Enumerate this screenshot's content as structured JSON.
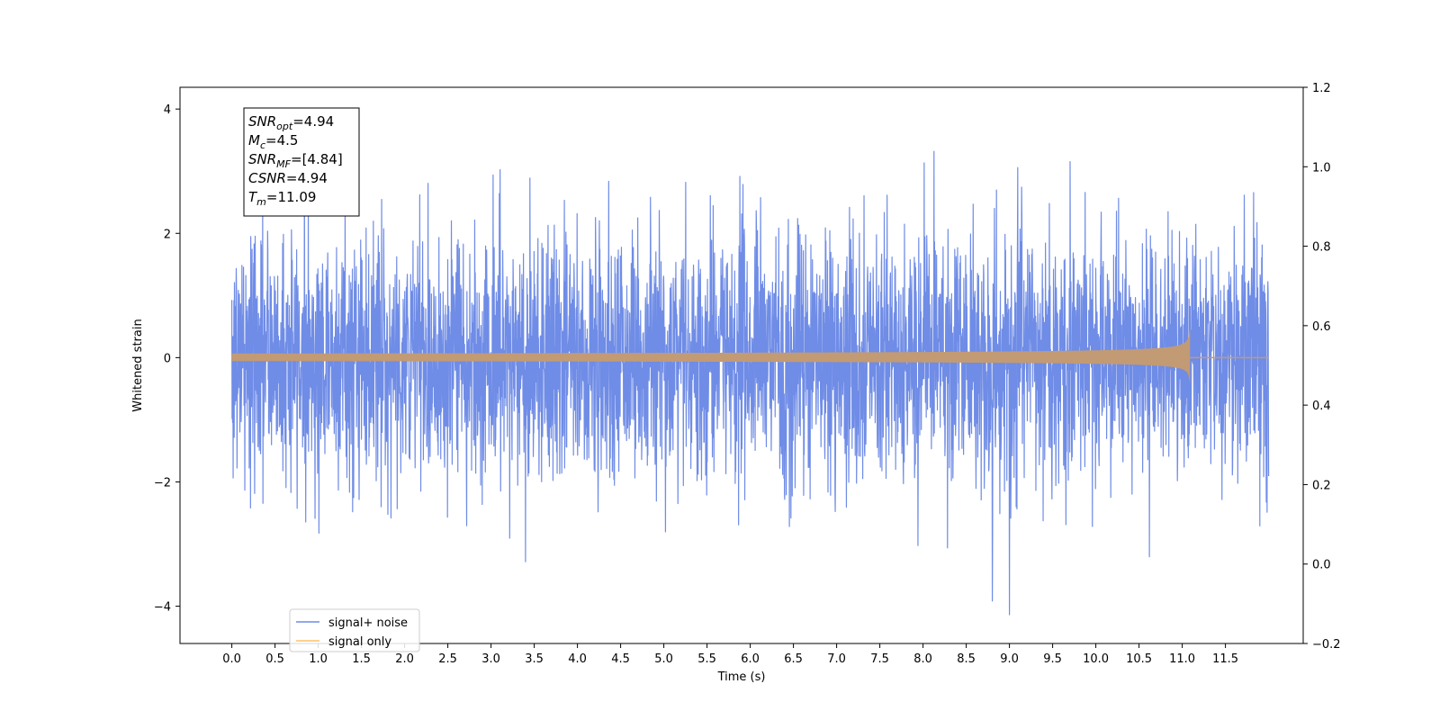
{
  "chart_data": {
    "type": "line",
    "xlabel": "Time (s)",
    "ylabel": "Whitened strain",
    "xlim": [
      -0.6,
      12.4
    ],
    "ylim": [
      -4.6,
      4.35
    ],
    "y2lim": [
      -0.2,
      1.2
    ],
    "x_ticks": [
      "0.0",
      "0.5",
      "1.0",
      "1.5",
      "2.0",
      "2.5",
      "3.0",
      "3.5",
      "4.0",
      "4.5",
      "5.0",
      "5.5",
      "6.0",
      "6.5",
      "7.0",
      "7.5",
      "8.0",
      "8.5",
      "9.0",
      "9.5",
      "10.0",
      "10.5",
      "11.0",
      "11.5"
    ],
    "y_ticks": [
      "4",
      "2",
      "0",
      "−2",
      "−4"
    ],
    "y2_ticks": [
      "1.2",
      "1.0",
      "0.8",
      "0.6",
      "0.4",
      "0.2",
      "0.0",
      "−0.2"
    ],
    "grid": false,
    "legend_position": "lower-left",
    "series": [
      {
        "name": "signal+ noise",
        "color": "#6f8ce6",
        "x_range": [
          0.0,
          12.0
        ],
        "noise_std": 1.0,
        "noise_max": 3.97,
        "noise_min": -4.22
      },
      {
        "name": "signal only",
        "color": "#ffc266",
        "x_range": [
          0.0,
          12.0
        ],
        "chirp_end_time": 11.09,
        "chirp_peak_amplitude": 0.52
      }
    ],
    "annotation": {
      "lines": [
        {
          "base": "SNR",
          "sub": "opt",
          "value": "=4.94"
        },
        {
          "base": "M",
          "sub": "c",
          "value": "=4.5"
        },
        {
          "base": "SNR",
          "sub": "MF",
          "value": "=[4.84]"
        },
        {
          "base": "CSNR",
          "sub": "",
          "value": "=4.94"
        },
        {
          "base": "T",
          "sub": "m",
          "value": "=11.09"
        }
      ]
    }
  }
}
